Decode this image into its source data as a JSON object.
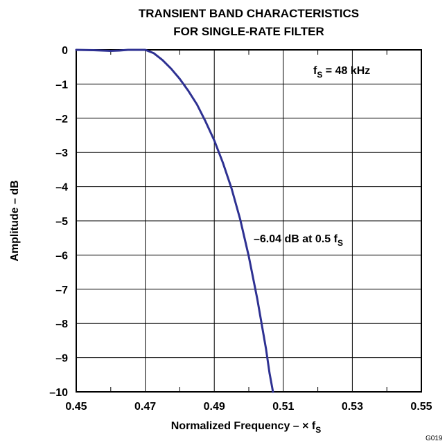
{
  "chart_data": {
    "type": "line",
    "title": [
      "TRANSIENT BAND CHARACTERISTICS",
      "FOR SINGLE-RATE FILTER"
    ],
    "xlabel": "Normalized Frequency – × f",
    "xlabel_sub": "S",
    "ylabel": "Amplitude – dB",
    "xlim": [
      0.45,
      0.55
    ],
    "ylim": [
      -10,
      0
    ],
    "xticks": [
      0.45,
      0.47,
      0.49,
      0.51,
      0.53,
      0.55
    ],
    "xtick_labels": [
      "0.45",
      "0.47",
      "0.49",
      "0.51",
      "0.53",
      "0.55"
    ],
    "yticks": [
      0,
      -1,
      -2,
      -3,
      -4,
      -5,
      -6,
      -7,
      -8,
      -9,
      -10
    ],
    "ytick_labels": [
      "0",
      "–1",
      "–2",
      "–3",
      "–4",
      "–5",
      "–6",
      "–7",
      "–8",
      "–9",
      "–10"
    ],
    "x_minor_step": 0.01,
    "grid": true,
    "series": [
      {
        "color": "#2e3192",
        "x": [
          0.45,
          0.455,
          0.46,
          0.4625,
          0.465,
          0.4675,
          0.47,
          0.4725,
          0.475,
          0.4775,
          0.48,
          0.4825,
          0.485,
          0.4875,
          0.49,
          0.4925,
          0.495,
          0.4975,
          0.5,
          0.5025,
          0.505,
          0.506,
          0.507
        ],
        "values": [
          0.0,
          -0.01,
          -0.03,
          -0.02,
          0.0,
          0.0,
          0.0,
          -0.1,
          -0.3,
          -0.55,
          -0.85,
          -1.2,
          -1.6,
          -2.1,
          -2.65,
          -3.3,
          -4.05,
          -4.95,
          -6.04,
          -7.3,
          -8.75,
          -9.45,
          -10.0
        ]
      }
    ],
    "annotations": [
      {
        "text": "f",
        "sub": "S",
        "suffix": " = 48 kHz"
      },
      {
        "text": "–6.04 dB at 0.5 f",
        "sub": "S",
        "suffix": ""
      }
    ],
    "figure_id": "G019"
  }
}
